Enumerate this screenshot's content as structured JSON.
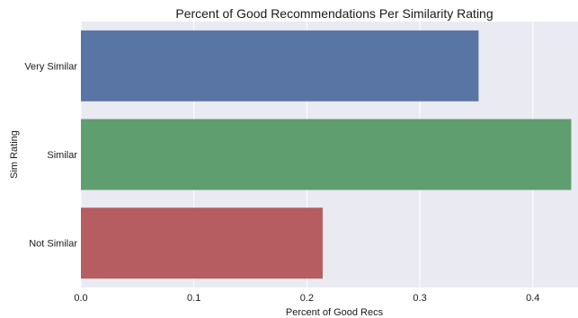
{
  "chart_data": {
    "type": "bar",
    "orientation": "horizontal",
    "title": "Percent of Good Recommendations Per Similarity Rating",
    "xlabel": "Percent of Good Recs",
    "ylabel": "Sim Rating",
    "categories": [
      "Very Similar",
      "Similar",
      "Not Similar"
    ],
    "values": [
      0.352,
      0.434,
      0.214
    ],
    "colors": [
      "#5975a4",
      "#5f9e6e",
      "#b55d60"
    ],
    "xlim": [
      0.0,
      0.44
    ],
    "xticks": [
      0.0,
      0.1,
      0.2,
      0.3,
      0.4
    ],
    "xtick_labels": [
      "0.0",
      "0.1",
      "0.2",
      "0.3",
      "0.4"
    ],
    "grid": true,
    "background": "#eaeaf2",
    "gridline_color": "#ffffff"
  }
}
